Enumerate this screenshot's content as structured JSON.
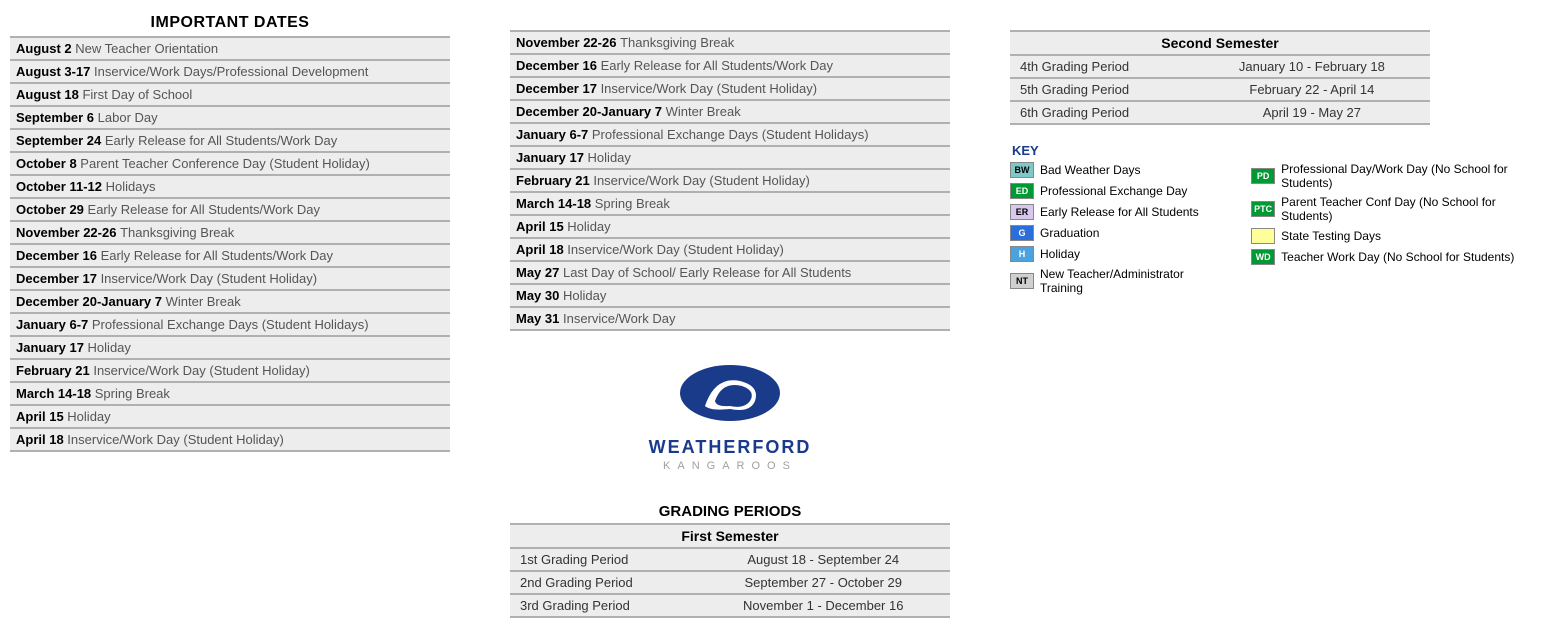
{
  "important_dates_title": "IMPORTANT DATES",
  "dates_col1": [
    {
      "date": "August 2",
      "desc": "New Teacher Orientation"
    },
    {
      "date": "August 3-17",
      "desc": "Inservice/Work Days/Professional Development"
    },
    {
      "date": "August 18",
      "desc": "First Day of School"
    },
    {
      "date": "September 6",
      "desc": " Labor Day"
    },
    {
      "date": "September 24",
      "desc": "Early Release for All Students/Work Day"
    },
    {
      "date": "October 8",
      "desc": "Parent Teacher Conference Day (Student Holiday)"
    },
    {
      "date": "October 11-12",
      "desc": "Holidays"
    },
    {
      "date": "October 29",
      "desc": "Early Release for All Students/Work Day"
    },
    {
      "date": "November 22-26",
      "desc": "Thanksgiving Break"
    },
    {
      "date": "December 16",
      "desc": "Early Release for All Students/Work Day"
    },
    {
      "date": "December 17",
      "desc": "Inservice/Work Day (Student Holiday)"
    },
    {
      "date": "December 20-January 7",
      "desc": "Winter Break"
    },
    {
      "date": "January 6-7",
      "desc": "Professional Exchange Days (Student Holidays)"
    },
    {
      "date": "January 17",
      "desc": "Holiday"
    },
    {
      "date": "February 21",
      "desc": "Inservice/Work Day (Student Holiday)"
    },
    {
      "date": "March 14-18",
      "desc": "Spring Break"
    },
    {
      "date": "April 15",
      "desc": "Holiday"
    },
    {
      "date": "April 18",
      "desc": "Inservice/Work Day (Student Holiday)"
    }
  ],
  "dates_col2": [
    {
      "date": "November 22-26",
      "desc": "Thanksgiving Break"
    },
    {
      "date": "December 16",
      "desc": "Early Release for All Students/Work Day"
    },
    {
      "date": "December 17",
      "desc": "Inservice/Work Day (Student Holiday)"
    },
    {
      "date": "December 20-January 7",
      "desc": "Winter Break"
    },
    {
      "date": "January 6-7",
      "desc": "Professional Exchange Days (Student Holidays)"
    },
    {
      "date": "January 17",
      "desc": "Holiday"
    },
    {
      "date": "February 21",
      "desc": "Inservice/Work Day (Student Holiday)"
    },
    {
      "date": "March 14-18",
      "desc": "Spring Break"
    },
    {
      "date": "April 15",
      "desc": "Holiday"
    },
    {
      "date": "April 18",
      "desc": "Inservice/Work Day (Student Holiday)"
    },
    {
      "date": "May 27",
      "desc": "Last Day of School/ Early Release for All Students"
    },
    {
      "date": "May 30",
      "desc": "Holiday"
    },
    {
      "date": "May 31",
      "desc": "Inservice/Work Day"
    }
  ],
  "logo": {
    "name": "WEATHERFORD",
    "sub": "KANGAROOS",
    "primary_color": "#1a3a8a",
    "accent_color": "#a0a0a0"
  },
  "grading_periods_title": "GRADING PERIODS",
  "first_semester_title": "First Semester",
  "first_semester": [
    {
      "label": "1st Grading Period",
      "range": "August 18 - September 24"
    },
    {
      "label": "2nd Grading Period",
      "range": "September 27 - October 29"
    },
    {
      "label": "3rd Grading Period",
      "range": "November 1 - December 16"
    }
  ],
  "second_semester_title": "Second Semester",
  "second_semester": [
    {
      "label": "4th Grading Period",
      "range": "January 10 - February 18"
    },
    {
      "label": "5th Grading Period",
      "range": "February 22 - April 14"
    },
    {
      "label": "6th Grading Period",
      "range": "April 19 - May 27"
    }
  ],
  "key_title": "KEY",
  "key_left": [
    {
      "code": "BW",
      "bg": "#7ec8c8",
      "fg": "#000000",
      "label": "Bad Weather Days"
    },
    {
      "code": "ED",
      "bg": "#009933",
      "fg": "#ffffff",
      "label": "Professional Exchange Day"
    },
    {
      "code": "ER",
      "bg": "#d8c8f0",
      "fg": "#000000",
      "label": "Early Release for All Students"
    },
    {
      "code": "G",
      "bg": "#2a6edb",
      "fg": "#ffffff",
      "label": "Graduation"
    },
    {
      "code": "H",
      "bg": "#4aa3df",
      "fg": "#ffffff",
      "label": "Holiday"
    },
    {
      "code": "NT",
      "bg": "#d0d0d0",
      "fg": "#000000",
      "label": "New Teacher/Administrator Training"
    }
  ],
  "key_right": [
    {
      "code": "PD",
      "bg": "#009933",
      "fg": "#ffffff",
      "label": "Professional Day/Work Day (No School for Students)"
    },
    {
      "code": "PTC",
      "bg": "#009933",
      "fg": "#ffffff",
      "label": "Parent Teacher Conf Day (No School for Students)"
    },
    {
      "code": "",
      "bg": "#ffff99",
      "fg": "#000000",
      "label": "State Testing Days"
    },
    {
      "code": "WD",
      "bg": "#009933",
      "fg": "#ffffff",
      "label": "Teacher Work Day (No School for Students)"
    }
  ],
  "colors": {
    "row_bg": "#ededed",
    "row_border": "#b0b0b0",
    "text_muted": "#555555"
  }
}
